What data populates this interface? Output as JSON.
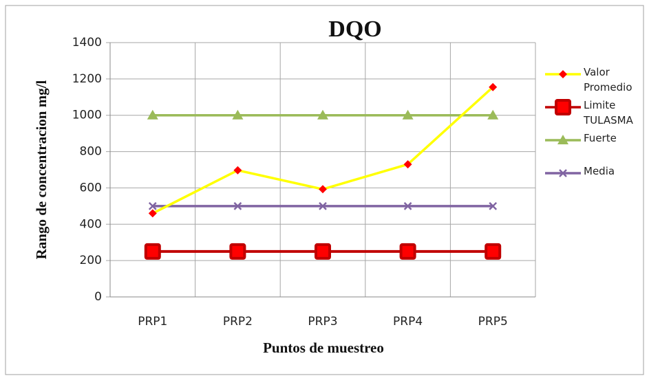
{
  "chart_data": {
    "type": "line",
    "title": "DQO",
    "x_label": "Puntos de muestreo",
    "y_label": "Rango de concentracion mg/l",
    "categories": [
      "PRP1",
      "PRP2",
      "PRP3",
      "PRP4",
      "PRP5"
    ],
    "series": [
      {
        "name": "Valor Promedio",
        "color": "#ffff00",
        "marker": "diamond",
        "marker_color": "#ff0000",
        "values": [
          460,
          697,
          593,
          730,
          1155
        ]
      },
      {
        "name": "Limite TULASMA",
        "color": "#c00000",
        "marker": "square",
        "marker_color": "#ff0000",
        "values": [
          250,
          250,
          250,
          250,
          250
        ]
      },
      {
        "name": "Fuerte",
        "color": "#9bbb59",
        "marker": "triangle",
        "marker_color": "#9bbb59",
        "values": [
          1000,
          1000,
          1000,
          1000,
          1000
        ]
      },
      {
        "name": "Media",
        "color": "#8064a2",
        "marker": "x",
        "marker_color": "#8064a2",
        "values": [
          500,
          500,
          500,
          500,
          500
        ]
      }
    ],
    "ylim": [
      0,
      1400
    ],
    "yticks": [
      0,
      200,
      400,
      600,
      800,
      1000,
      1200,
      1400
    ],
    "grid": true,
    "legend": "right"
  }
}
